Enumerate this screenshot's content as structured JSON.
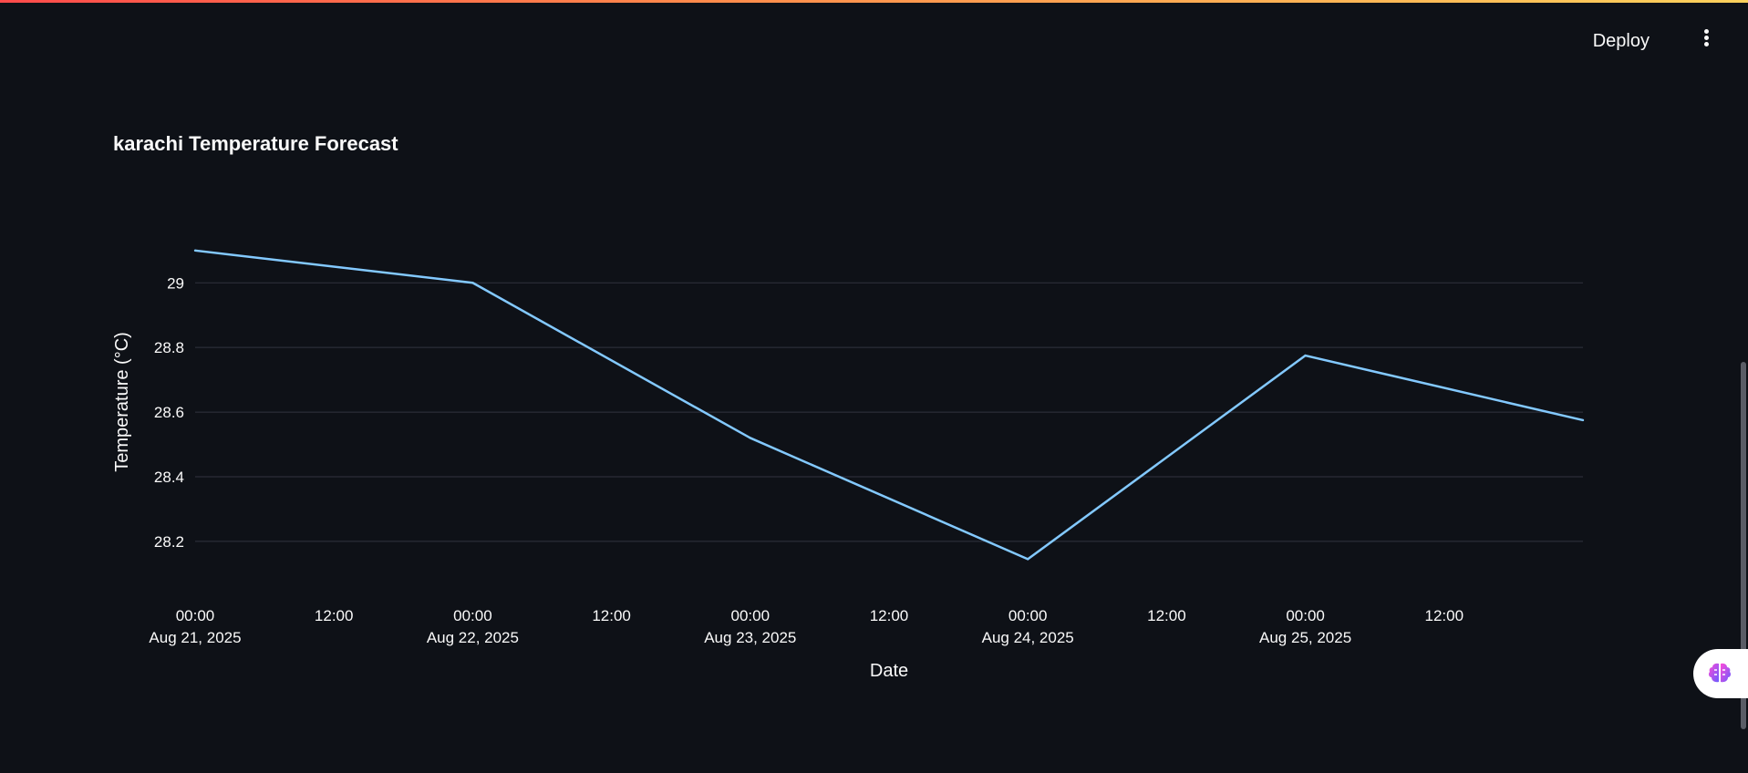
{
  "header": {
    "deploy_label": "Deploy"
  },
  "page": {
    "title": "karachi Temperature Forecast"
  },
  "icons": {
    "menu": "vertical-ellipsis-icon",
    "assistant": "brain-icon"
  },
  "colors": {
    "background": "#0e1117",
    "line": "#83c9ff",
    "grid": "#31333f",
    "text": "#fafafa"
  },
  "chart_data": {
    "type": "line",
    "title": "karachi Temperature Forecast",
    "xlabel": "Date",
    "ylabel": "Temperature (°C)",
    "x": [
      "2025-08-21 00:00",
      "2025-08-22 00:00",
      "2025-08-23 00:00",
      "2025-08-24 00:00",
      "2025-08-25 00:00",
      "2025-08-26 00:00"
    ],
    "series": [
      {
        "values": [
          29.1,
          29.0,
          28.52,
          28.145,
          28.775,
          28.575
        ]
      }
    ],
    "ylim": [
      28.07,
      29.17
    ],
    "yticks": [
      28.2,
      28.4,
      28.6,
      28.8,
      29.0
    ],
    "ytick_labels": [
      "28.2",
      "28.4",
      "28.6",
      "28.8",
      "29"
    ],
    "xticks": [
      {
        "time": "00:00",
        "date": "Aug 21, 2025"
      },
      {
        "time": "12:00",
        "date": ""
      },
      {
        "time": "00:00",
        "date": "Aug 22, 2025"
      },
      {
        "time": "12:00",
        "date": ""
      },
      {
        "time": "00:00",
        "date": "Aug 23, 2025"
      },
      {
        "time": "12:00",
        "date": ""
      },
      {
        "time": "00:00",
        "date": "Aug 24, 2025"
      },
      {
        "time": "12:00",
        "date": ""
      },
      {
        "time": "00:00",
        "date": "Aug 25, 2025"
      },
      {
        "time": "12:00",
        "date": ""
      }
    ],
    "grid": true,
    "legend": "none"
  }
}
